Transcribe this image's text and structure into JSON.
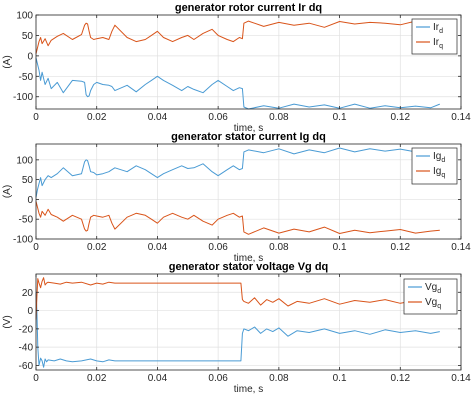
{
  "colors": {
    "blue": "#4a9bd4",
    "orange": "#d9541a",
    "frame": "#262626",
    "grid": "#e0e0e0",
    "axes_bg": "#ffffff"
  },
  "chart_data": [
    {
      "type": "line",
      "title": "generator rotor current Ir dq",
      "xlabel": "time, s",
      "ylabel": "(A)",
      "xlim": [
        0,
        0.14
      ],
      "ylim": [
        -130,
        100
      ],
      "xticks": [
        "0",
        "0.02",
        "0.04",
        "0.06",
        "0.08",
        "0.1",
        "0.12",
        "0.14"
      ],
      "yticks": [
        "100",
        "50",
        "0",
        "-50",
        "-100"
      ],
      "ytick_values": [
        100,
        50,
        0,
        -50,
        -100
      ],
      "grid": true,
      "legend_position": "top-right",
      "series": [
        {
          "name": "Ir_d",
          "legend_main": "Ir",
          "legend_sub": "d",
          "color_key": "blue",
          "x": [
            0,
            0.0005,
            0.001,
            0.0015,
            0.002,
            0.003,
            0.004,
            0.005,
            0.007,
            0.009,
            0.012,
            0.015,
            0.016,
            0.0165,
            0.017,
            0.0175,
            0.018,
            0.019,
            0.02,
            0.022,
            0.024,
            0.025,
            0.026,
            0.03,
            0.033,
            0.036,
            0.038,
            0.04,
            0.042,
            0.045,
            0.048,
            0.05,
            0.052,
            0.055,
            0.058,
            0.06,
            0.063,
            0.065,
            0.067,
            0.068,
            0.0685,
            0.07,
            0.075,
            0.08,
            0.085,
            0.09,
            0.095,
            0.1,
            0.105,
            0.11,
            0.115,
            0.12,
            0.125,
            0.13,
            0.133
          ],
          "y": [
            -5,
            -20,
            -35,
            -60,
            -40,
            -70,
            -55,
            -80,
            -65,
            -90,
            -60,
            -62,
            -65,
            -95,
            -100,
            -98,
            -85,
            -70,
            -65,
            -70,
            -72,
            -75,
            -85,
            -72,
            -88,
            -70,
            -60,
            -50,
            -60,
            -72,
            -85,
            -75,
            -82,
            -90,
            -70,
            -60,
            -75,
            -85,
            -78,
            -80,
            -125,
            -130,
            -122,
            -128,
            -118,
            -125,
            -120,
            -128,
            -118,
            -128,
            -122,
            -127,
            -123,
            -127,
            -118
          ]
        },
        {
          "name": "Ir_q",
          "legend_main": "Ir",
          "legend_sub": "q",
          "color_key": "orange",
          "x": [
            0,
            0.0005,
            0.001,
            0.0015,
            0.002,
            0.003,
            0.004,
            0.005,
            0.007,
            0.009,
            0.012,
            0.015,
            0.016,
            0.0165,
            0.017,
            0.0175,
            0.018,
            0.019,
            0.02,
            0.022,
            0.024,
            0.025,
            0.026,
            0.03,
            0.033,
            0.036,
            0.038,
            0.04,
            0.042,
            0.045,
            0.048,
            0.05,
            0.052,
            0.055,
            0.058,
            0.06,
            0.063,
            0.065,
            0.067,
            0.068,
            0.0685,
            0.07,
            0.075,
            0.08,
            0.085,
            0.09,
            0.095,
            0.1,
            0.105,
            0.11,
            0.115,
            0.12,
            0.125,
            0.13,
            0.133
          ],
          "y": [
            5,
            20,
            35,
            45,
            30,
            42,
            25,
            38,
            48,
            55,
            40,
            52,
            75,
            80,
            78,
            60,
            45,
            40,
            42,
            45,
            40,
            60,
            75,
            45,
            35,
            40,
            50,
            60,
            45,
            35,
            45,
            50,
            40,
            55,
            65,
            50,
            40,
            35,
            45,
            42,
            80,
            85,
            72,
            82,
            75,
            80,
            70,
            84,
            78,
            82,
            80,
            76,
            85,
            80,
            75
          ]
        }
      ]
    },
    {
      "type": "line",
      "title": "generator stator current Ig dq",
      "xlabel": "time, s",
      "ylabel": "(A)",
      "xlim": [
        0,
        0.14
      ],
      "ylim": [
        -100,
        140
      ],
      "xticks": [
        "0",
        "0.02",
        "0.04",
        "0.06",
        "0.08",
        "0.1",
        "0.12",
        "0.14"
      ],
      "yticks": [
        "100",
        "50",
        "0",
        "-50",
        "-100"
      ],
      "ytick_values": [
        100,
        50,
        0,
        -50,
        -100
      ],
      "grid": true,
      "legend_position": "top-right",
      "series": [
        {
          "name": "Ig_d",
          "legend_main": "Ig",
          "legend_sub": "d",
          "color_key": "blue",
          "x": [
            0,
            0.0005,
            0.001,
            0.0015,
            0.002,
            0.003,
            0.004,
            0.005,
            0.007,
            0.009,
            0.012,
            0.015,
            0.016,
            0.0165,
            0.017,
            0.0175,
            0.018,
            0.019,
            0.02,
            0.022,
            0.024,
            0.025,
            0.026,
            0.03,
            0.033,
            0.036,
            0.038,
            0.04,
            0.042,
            0.045,
            0.048,
            0.05,
            0.052,
            0.055,
            0.058,
            0.06,
            0.063,
            0.065,
            0.067,
            0.068,
            0.0685,
            0.07,
            0.075,
            0.08,
            0.085,
            0.09,
            0.095,
            0.1,
            0.105,
            0.11,
            0.115,
            0.12,
            0.125,
            0.13,
            0.133
          ],
          "y": [
            5,
            25,
            40,
            55,
            35,
            50,
            60,
            55,
            65,
            80,
            60,
            65,
            95,
            100,
            98,
            85,
            70,
            68,
            62,
            65,
            70,
            75,
            80,
            70,
            85,
            75,
            65,
            55,
            65,
            75,
            85,
            78,
            80,
            90,
            70,
            60,
            75,
            85,
            75,
            78,
            120,
            125,
            118,
            128,
            115,
            125,
            118,
            130,
            120,
            128,
            122,
            127,
            120,
            128,
            125
          ]
        },
        {
          "name": "Ig_q",
          "legend_main": "Ig",
          "legend_sub": "q",
          "color_key": "orange",
          "x": [
            0,
            0.0005,
            0.001,
            0.0015,
            0.002,
            0.003,
            0.004,
            0.005,
            0.007,
            0.009,
            0.012,
            0.015,
            0.016,
            0.0165,
            0.017,
            0.0175,
            0.018,
            0.019,
            0.02,
            0.022,
            0.024,
            0.025,
            0.026,
            0.03,
            0.033,
            0.036,
            0.038,
            0.04,
            0.042,
            0.045,
            0.048,
            0.05,
            0.052,
            0.055,
            0.058,
            0.06,
            0.063,
            0.065,
            0.067,
            0.068,
            0.0685,
            0.07,
            0.075,
            0.08,
            0.085,
            0.09,
            0.095,
            0.1,
            0.105,
            0.11,
            0.115,
            0.12,
            0.125,
            0.13,
            0.133
          ],
          "y": [
            -5,
            -20,
            -35,
            -45,
            -30,
            -40,
            -25,
            -38,
            -45,
            -55,
            -40,
            -50,
            -75,
            -80,
            -78,
            -60,
            -45,
            -40,
            -42,
            -45,
            -40,
            -60,
            -75,
            -45,
            -35,
            -40,
            -50,
            -60,
            -45,
            -35,
            -45,
            -50,
            -40,
            -55,
            -65,
            -50,
            -40,
            -35,
            -45,
            -42,
            -82,
            -88,
            -72,
            -85,
            -75,
            -82,
            -70,
            -86,
            -78,
            -84,
            -80,
            -76,
            -85,
            -80,
            -78
          ]
        }
      ]
    },
    {
      "type": "line",
      "title": "generator stator voltage Vg dq",
      "xlabel": "time, s",
      "ylabel": "(V)",
      "xlim": [
        0,
        0.14
      ],
      "ylim": [
        -65,
        40
      ],
      "xticks": [
        "0",
        "0.02",
        "0.04",
        "0.06",
        "0.08",
        "0.1",
        "0.12",
        "0.14"
      ],
      "yticks": [
        "20",
        "0",
        "-20",
        "-40",
        "-60"
      ],
      "ytick_values": [
        20,
        0,
        -20,
        -40,
        -60
      ],
      "grid": true,
      "legend_position": "top-right",
      "series": [
        {
          "name": "Vg_d",
          "legend_main": "Vg",
          "legend_sub": "d",
          "color_key": "blue",
          "x": [
            0,
            0.0003,
            0.0006,
            0.001,
            0.0015,
            0.002,
            0.0025,
            0.003,
            0.0035,
            0.004,
            0.006,
            0.008,
            0.01,
            0.012,
            0.015,
            0.018,
            0.02,
            0.022,
            0.024,
            0.026,
            0.03,
            0.04,
            0.05,
            0.06,
            0.0675,
            0.068,
            0.0685,
            0.07,
            0.072,
            0.074,
            0.076,
            0.078,
            0.08,
            0.083,
            0.086,
            0.09,
            0.095,
            0.1,
            0.105,
            0.11,
            0.115,
            0.12,
            0.125,
            0.13,
            0.133
          ],
          "y": [
            20,
            0,
            -40,
            -60,
            -52,
            -55,
            -62,
            -53,
            -56,
            -54,
            -55,
            -53,
            -55,
            -56,
            -55,
            -53,
            -55,
            -56,
            -54,
            -55,
            -55,
            -55,
            -55,
            -55,
            -55,
            -25,
            -20,
            -22,
            -18,
            -25,
            -20,
            -23,
            -19,
            -28,
            -22,
            -24,
            -20,
            -25,
            -22,
            -26,
            -21,
            -24,
            -22,
            -25,
            -23
          ]
        },
        {
          "name": "Vg_q",
          "legend_main": "Vg",
          "legend_sub": "q",
          "color_key": "orange",
          "x": [
            0,
            0.0003,
            0.0006,
            0.001,
            0.0015,
            0.002,
            0.0025,
            0.003,
            0.0035,
            0.004,
            0.006,
            0.008,
            0.01,
            0.012,
            0.015,
            0.018,
            0.02,
            0.022,
            0.024,
            0.026,
            0.03,
            0.04,
            0.05,
            0.06,
            0.0675,
            0.068,
            0.0685,
            0.07,
            0.072,
            0.074,
            0.076,
            0.078,
            0.08,
            0.083,
            0.086,
            0.09,
            0.095,
            0.1,
            0.105,
            0.11,
            0.115,
            0.12,
            0.125,
            0.13,
            0.133
          ],
          "y": [
            -10,
            15,
            35,
            30,
            25,
            32,
            36,
            28,
            30,
            31,
            30,
            29,
            31,
            30,
            31,
            28,
            30,
            29,
            31,
            30,
            30,
            30,
            30,
            30,
            30,
            12,
            10,
            8,
            14,
            6,
            12,
            9,
            13,
            5,
            10,
            8,
            13,
            7,
            11,
            9,
            12,
            8,
            11,
            10,
            9
          ]
        }
      ]
    }
  ]
}
